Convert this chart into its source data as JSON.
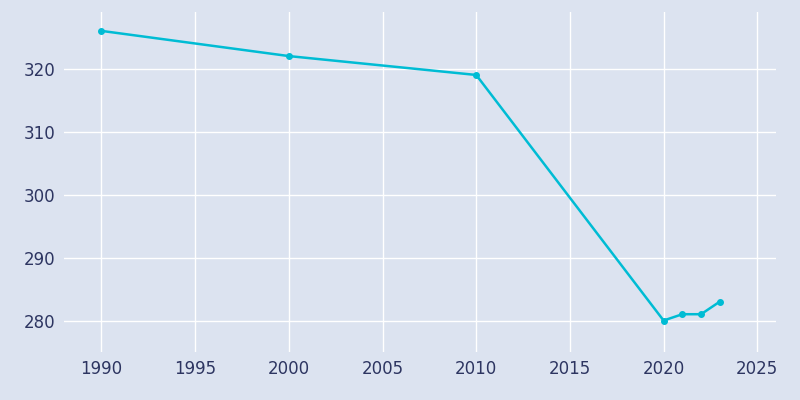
{
  "years": [
    1990,
    2000,
    2010,
    2020,
    2021,
    2022,
    2023
  ],
  "population": [
    326,
    322,
    319,
    280,
    281,
    281,
    283
  ],
  "line_color": "#00BCD4",
  "marker": "o",
  "marker_size": 4,
  "bg_color": "#dce3f0",
  "plot_bg_color": "#dce3f0",
  "grid_color": "#ffffff",
  "xlim": [
    1988,
    2026
  ],
  "ylim": [
    275,
    329
  ],
  "xticks": [
    1990,
    1995,
    2000,
    2005,
    2010,
    2015,
    2020,
    2025
  ],
  "yticks": [
    280,
    290,
    300,
    310,
    320
  ],
  "tick_color": "#2d3561",
  "tick_fontsize": 12,
  "linewidth": 1.8
}
